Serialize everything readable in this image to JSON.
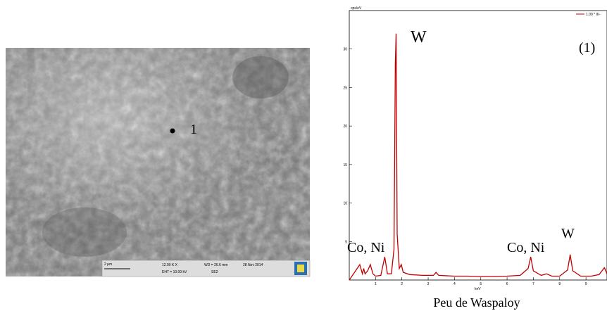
{
  "micrograph": {
    "point_label": "1",
    "scale_bar": "2 µm",
    "magnification": "12.00 K X",
    "eht": "EHT = 10.00 kV",
    "wd": "WD = 26.6 mm",
    "detector": "SE2",
    "date": "28 Nov 2014"
  },
  "chart_data": {
    "type": "line",
    "y_axis_label": "cps/eV",
    "x_axis_label": "keV",
    "legend": "1.00 * III-",
    "x": [
      0,
      0.2,
      0.3,
      0.4,
      0.5,
      0.55,
      0.6,
      0.7,
      0.8,
      0.9,
      1.0,
      1.2,
      1.35,
      1.45,
      1.6,
      1.7,
      1.75,
      1.78,
      1.82,
      1.9,
      1.98,
      2.05,
      2.3,
      2.8,
      3.2,
      3.3,
      3.4,
      4.0,
      4.5,
      5.0,
      5.5,
      6.0,
      6.5,
      6.8,
      6.9,
      7.0,
      7.3,
      7.5,
      7.7,
      8.0,
      8.3,
      8.4,
      8.5,
      8.8,
      9.2,
      9.5,
      9.7,
      9.8
    ],
    "values": [
      0,
      1,
      1.5,
      2,
      0.8,
      1.5,
      0.8,
      1.2,
      2,
      0.8,
      0.5,
      0.6,
      3,
      0.8,
      0.8,
      4,
      28,
      32,
      6,
      1.5,
      2,
      1,
      0.7,
      0.6,
      0.6,
      1,
      0.6,
      0.5,
      0.5,
      0.45,
      0.45,
      0.5,
      0.6,
      1.5,
      3,
      1.2,
      0.6,
      0.8,
      0.5,
      0.5,
      1.3,
      3.3,
      1.2,
      0.5,
      0.5,
      0.7,
      1.6,
      0.8
    ],
    "color": "#c00000",
    "xlim": [
      0,
      9.8
    ],
    "xticks": [
      1,
      2,
      3,
      4,
      5,
      6,
      7,
      8,
      9
    ],
    "ylim": [
      0,
      35
    ],
    "yticks": [
      5,
      10,
      15,
      20,
      25,
      30
    ],
    "annotations": [
      "W",
      "(1)",
      "Co, Ni",
      "Co, Ni",
      "W"
    ],
    "caption": "Peu de Waspaloy"
  }
}
